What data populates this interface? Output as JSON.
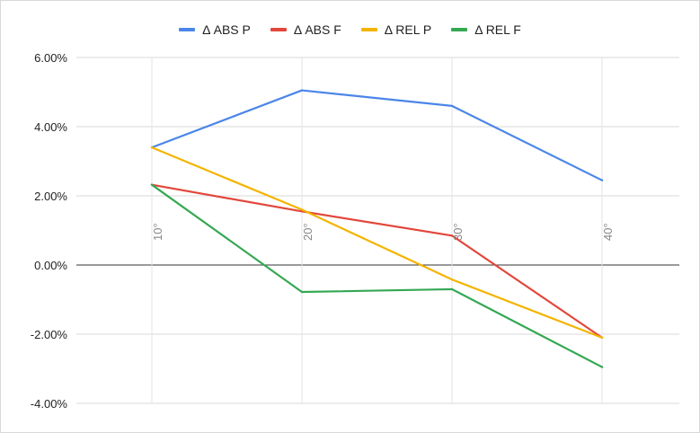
{
  "chart_data": {
    "type": "line",
    "categories": [
      "10°",
      "20°",
      "30°",
      "40°"
    ],
    "series": [
      {
        "name": "Δ ABS P",
        "color": "#4a86e8",
        "values": [
          3.4,
          5.05,
          4.6,
          2.45
        ]
      },
      {
        "name": "Δ ABS F",
        "color": "#e2473b",
        "values": [
          2.32,
          1.55,
          0.85,
          -2.1
        ]
      },
      {
        "name": "Δ REL P",
        "color": "#f4b400",
        "values": [
          3.4,
          1.6,
          -0.42,
          -2.1
        ]
      },
      {
        "name": "Δ REL F",
        "color": "#34a853",
        "values": [
          2.32,
          -0.78,
          -0.7,
          -2.95
        ]
      }
    ],
    "ylim": [
      -4,
      6
    ],
    "yticks": [
      6,
      4,
      2,
      0,
      -2,
      -4
    ],
    "ytick_labels": [
      "6.00%",
      "4.00%",
      "2.00%",
      "0.00%",
      "-2.00%",
      "-4.00%"
    ],
    "grid": true,
    "legend_position": "top-center",
    "title": "",
    "xlabel": "",
    "ylabel": ""
  }
}
